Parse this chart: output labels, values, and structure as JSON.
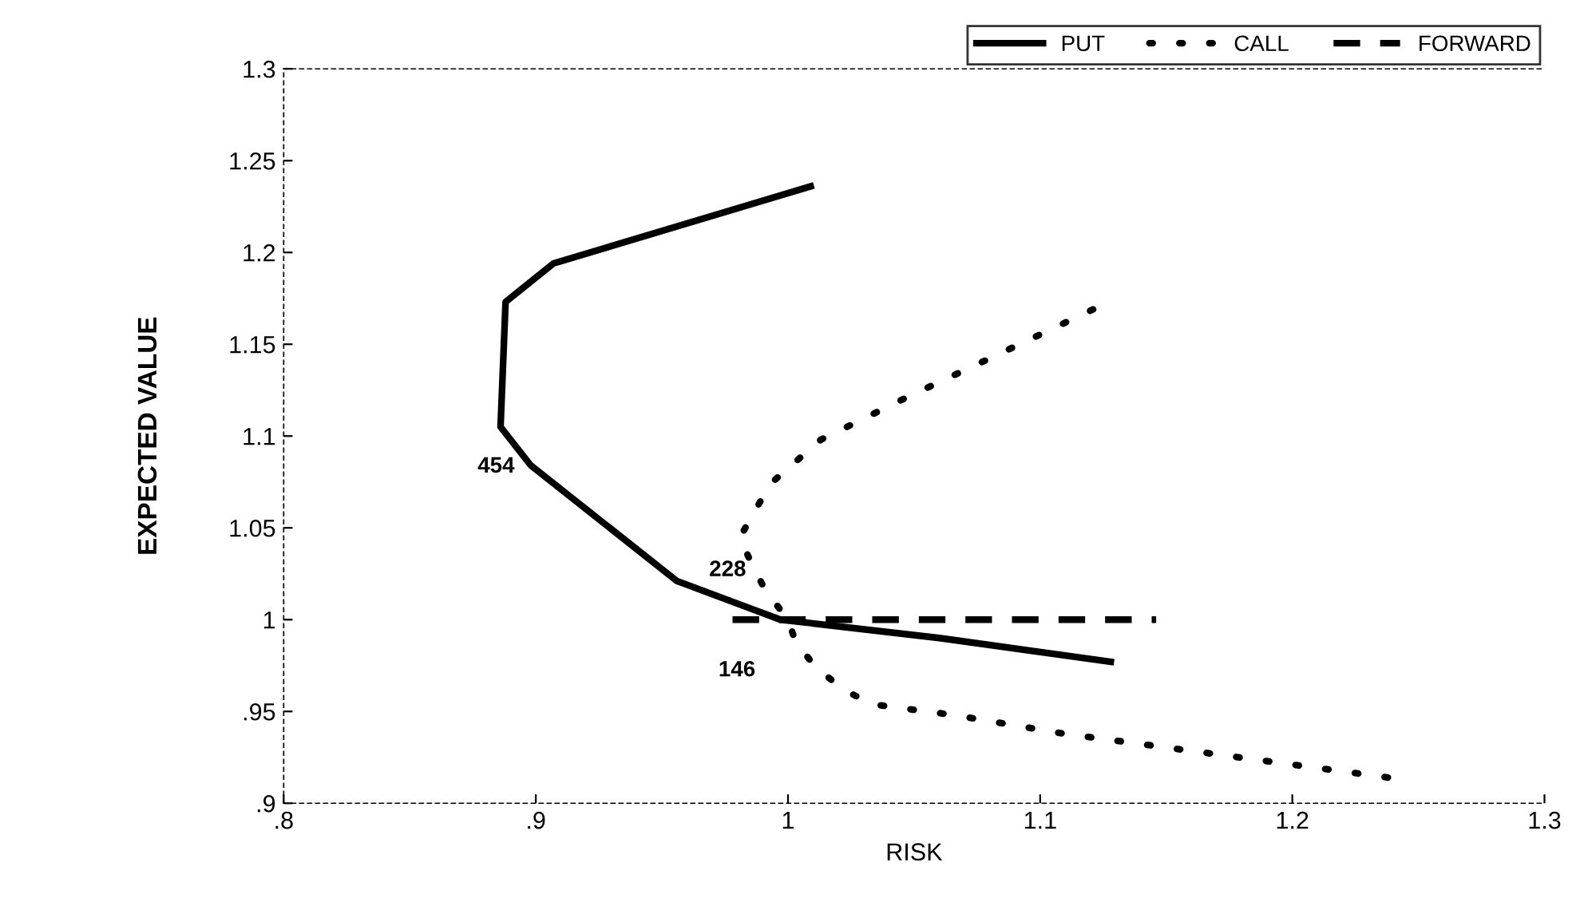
{
  "chart_data": {
    "type": "line",
    "xlabel": "RISK",
    "ylabel": "EXPECTED VALUE",
    "xlim": [
      0.8,
      1.3
    ],
    "ylim": [
      0.9,
      1.3
    ],
    "xticks": [
      {
        "value": 0.8,
        "label": ".8"
      },
      {
        "value": 0.9,
        "label": ".9"
      },
      1,
      1.1,
      1.2,
      1.3
    ],
    "yticks": [
      {
        "value": 0.9,
        "label": ".9"
      },
      {
        "value": 0.95,
        "label": ".95"
      },
      1,
      1.05,
      1.1,
      1.15,
      1.2,
      1.25,
      1.3
    ],
    "grid": false,
    "legend": "top right",
    "series": [
      {
        "name": "PUT",
        "color": "#000000",
        "line_style": "solid",
        "x": [
          1.009,
          0.907,
          0.888,
          0.886,
          0.898,
          0.956,
          0.997,
          1.06,
          1.128
        ],
        "values": [
          1.236,
          1.194,
          1.173,
          1.105,
          1.084,
          1.021,
          1.0,
          0.99,
          0.977
        ]
      },
      {
        "name": "CALL",
        "color": "#000000",
        "line_style": "dotted",
        "x": [
          1.121,
          1.078,
          1.047,
          1.013,
          0.993,
          0.981,
          0.985,
          0.991,
          1.0,
          1.003,
          1.011,
          1.022,
          1.033,
          1.066,
          1.109,
          1.152,
          1.238
        ],
        "values": [
          1.169,
          1.141,
          1.121,
          1.098,
          1.074,
          1.045,
          1.032,
          1.016,
          1.0,
          0.988,
          0.974,
          0.962,
          0.954,
          0.948,
          0.938,
          0.93,
          0.914
        ]
      },
      {
        "name": "FORWARD",
        "color": "#000000",
        "line_style": "dashed",
        "x": [
          0.978,
          1.146
        ],
        "values": [
          1.0,
          1.0
        ]
      }
    ],
    "annotations": [
      {
        "text": "454",
        "x": 0.886,
        "y": 1.105
      },
      {
        "text": "228",
        "x": 0.991,
        "y": 1.016
      },
      {
        "text": "146",
        "x": 0.978,
        "y": 1.0
      }
    ]
  }
}
